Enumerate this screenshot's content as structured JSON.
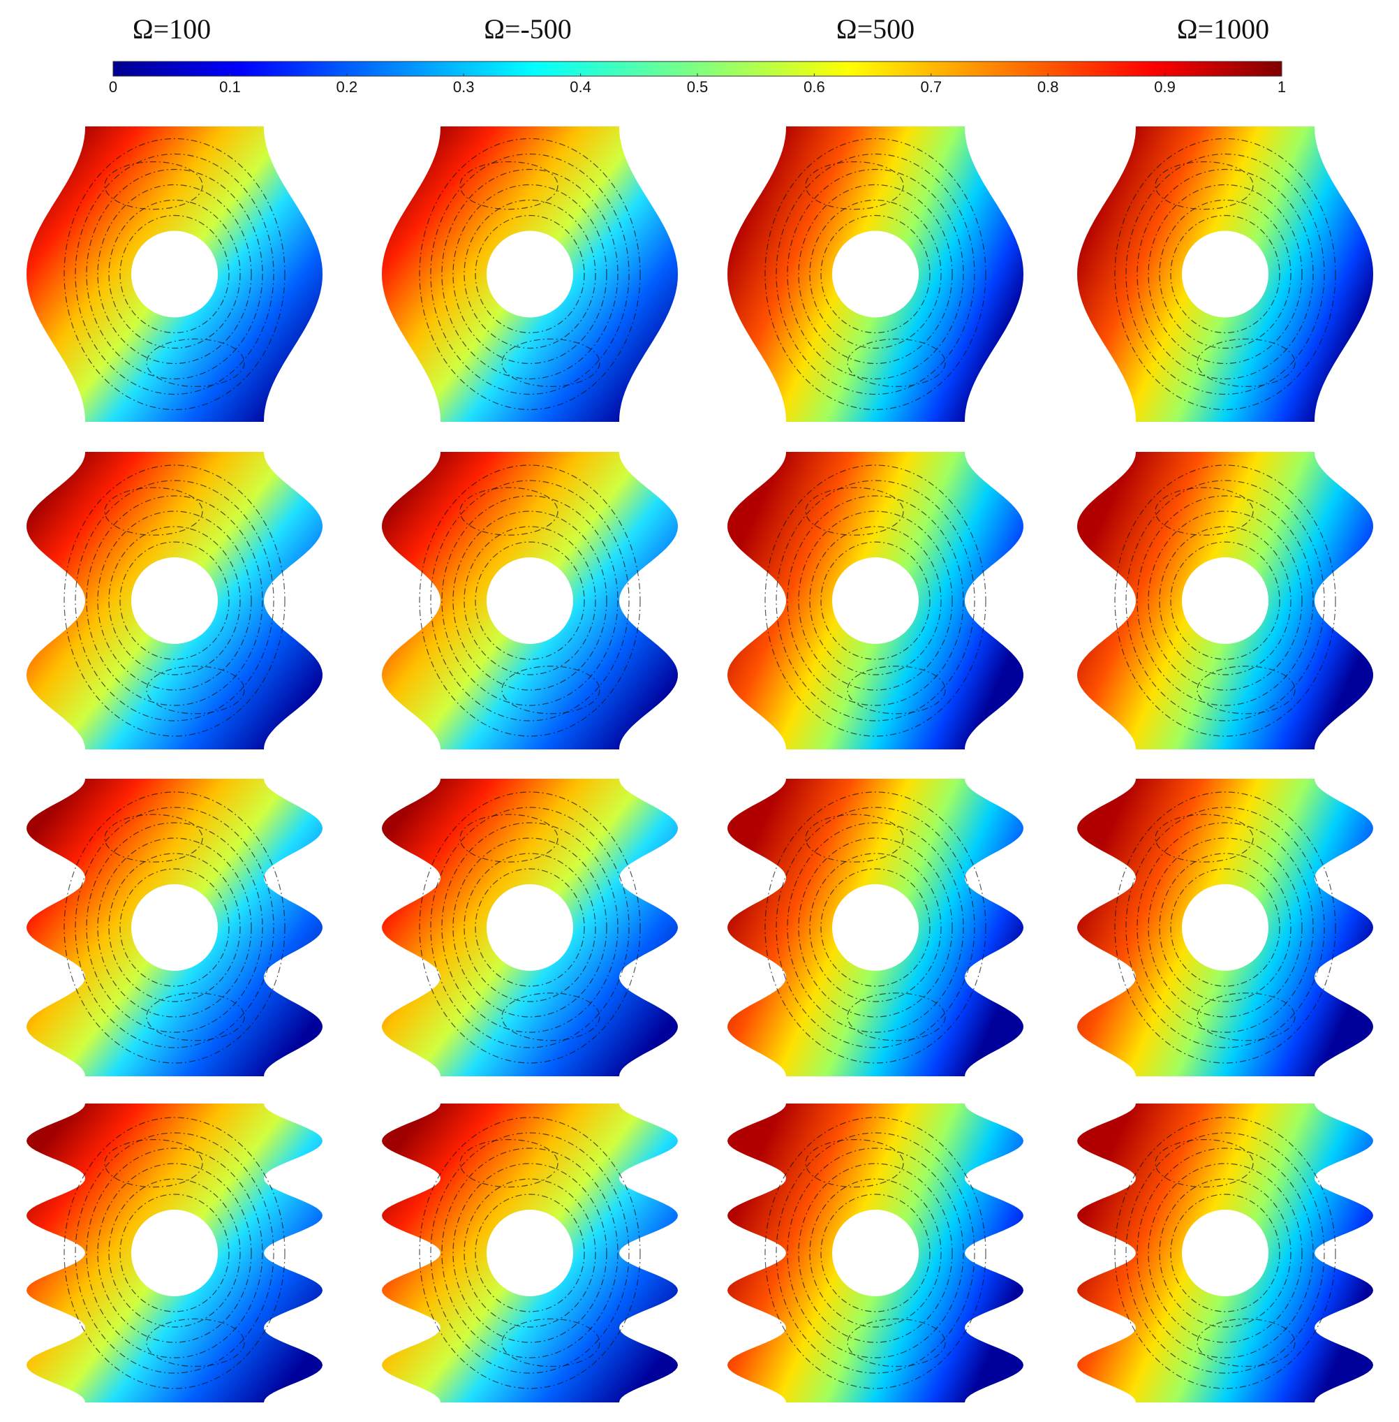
{
  "figure": {
    "column_labels": [
      "Ω=100",
      "Ω=-500",
      "Ω=500",
      "Ω=1000"
    ],
    "colorbar": {
      "range": [
        0,
        1
      ],
      "ticks": [
        0,
        0.1,
        0.2,
        0.3,
        0.4,
        0.5,
        0.6,
        0.7,
        0.8,
        0.9,
        1
      ]
    }
  }
}
